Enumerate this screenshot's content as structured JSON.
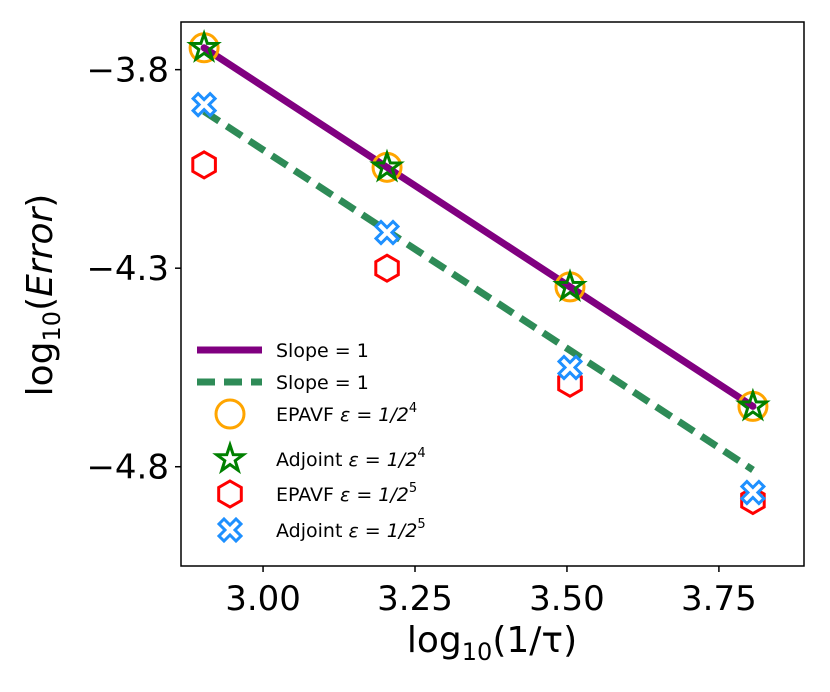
{
  "chart_data": {
    "type": "scatter",
    "xlabel": {
      "prefix": "log",
      "sub": "10",
      "suffix": "(1/τ)"
    },
    "ylabel": {
      "prefix": "log",
      "sub": "10",
      "open": "(",
      "italic": "Error",
      "close": ")"
    },
    "xlim": [
      2.865,
      3.89
    ],
    "ylim": [
      -5.05,
      -3.68
    ],
    "xticks": [
      3.0,
      3.25,
      3.5,
      3.75
    ],
    "xtick_labels": [
      "3.00",
      "3.25",
      "3.50",
      "3.75"
    ],
    "yticks": [
      -3.8,
      -4.3,
      -4.8
    ],
    "ytick_labels": [
      "−3.8",
      "−4.3",
      "−4.8"
    ],
    "lines": [
      {
        "name": "Slope = 1",
        "style": "solid",
        "color": "#800080",
        "x": [
          2.903,
          3.806
        ],
        "y": [
          -3.745,
          -4.648
        ]
      },
      {
        "name": "Slope = 1",
        "style": "dashed",
        "color": "#2e8b57",
        "x": [
          2.903,
          3.806
        ],
        "y": [
          -3.905,
          -4.808
        ]
      }
    ],
    "series": [
      {
        "name": "EPAVF",
        "eps_base": "1/2",
        "eps_exp": "4",
        "marker": "circle",
        "color": "#ffa500",
        "x": [
          2.903,
          3.204,
          3.505,
          3.806
        ],
        "y": [
          -3.745,
          -4.046,
          -4.347,
          -4.648
        ]
      },
      {
        "name": "Adjoint",
        "eps_base": "1/2",
        "eps_exp": "4",
        "marker": "star",
        "color": "#008000",
        "x": [
          2.903,
          3.204,
          3.505,
          3.806
        ],
        "y": [
          -3.745,
          -4.046,
          -4.347,
          -4.648
        ]
      },
      {
        "name": "EPAVF",
        "eps_base": "1/2",
        "eps_exp": "5",
        "marker": "hexagon",
        "color": "#ff0000",
        "x": [
          2.903,
          3.204,
          3.505,
          3.806
        ],
        "y": [
          -4.04,
          -4.3,
          -4.59,
          -4.885
        ]
      },
      {
        "name": "Adjoint",
        "eps_base": "1/2",
        "eps_exp": "5",
        "marker": "x",
        "color": "#1e90ff",
        "x": [
          2.903,
          3.204,
          3.505,
          3.806
        ],
        "y": [
          -3.888,
          -4.21,
          -4.55,
          -4.865
        ]
      }
    ],
    "legend": {
      "location": "lower-left",
      "entries": [
        {
          "label": "Slope = 1"
        },
        {
          "label": "Slope = 1"
        },
        {
          "label": "EPAVF",
          "eps": "ε = 1/2",
          "exp": "4"
        },
        {
          "label": "Adjoint",
          "eps": "ε = 1/2",
          "exp": "4"
        },
        {
          "label": "EPAVF",
          "eps": "ε = 1/2",
          "exp": "5"
        },
        {
          "label": "Adjoint",
          "eps": "ε = 1/2",
          "exp": "5"
        }
      ]
    }
  }
}
